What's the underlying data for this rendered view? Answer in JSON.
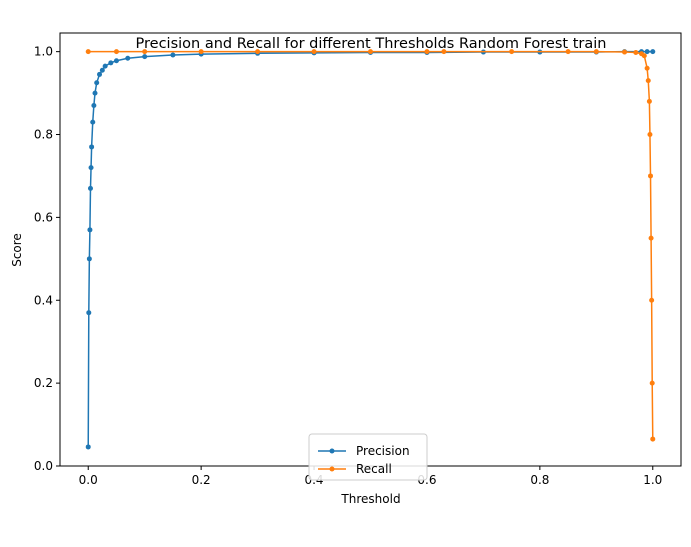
{
  "chart_data": {
    "type": "line",
    "title": "Precision and Recall for different Thresholds Random Forest train",
    "xlabel": "Threshold",
    "ylabel": "Score",
    "xlim": [
      -0.05,
      1.05
    ],
    "ylim": [
      0.0,
      1.045
    ],
    "xticks": [
      0.0,
      0.2,
      0.4,
      0.6,
      0.8,
      1.0
    ],
    "xtick_labels": [
      "0.0",
      "0.2",
      "0.4",
      "0.6",
      "0.8",
      "1.0"
    ],
    "yticks": [
      0.0,
      0.2,
      0.4,
      0.6,
      0.8,
      1.0
    ],
    "ytick_labels": [
      "0.0",
      "0.2",
      "0.4",
      "0.6",
      "0.8",
      "1.0"
    ],
    "grid": false,
    "legend_position": "lower-center",
    "series": [
      {
        "name": "Precision",
        "color": "#1f77b4",
        "marker": "circle",
        "x": [
          0.0,
          0.001,
          0.002,
          0.003,
          0.004,
          0.005,
          0.006,
          0.008,
          0.01,
          0.012,
          0.015,
          0.02,
          0.025,
          0.03,
          0.04,
          0.05,
          0.07,
          0.1,
          0.15,
          0.2,
          0.3,
          0.4,
          0.5,
          0.6,
          0.7,
          0.8,
          0.9,
          0.95,
          0.98,
          0.99,
          1.0
        ],
        "y": [
          0.046,
          0.37,
          0.5,
          0.57,
          0.67,
          0.72,
          0.77,
          0.83,
          0.87,
          0.9,
          0.925,
          0.945,
          0.955,
          0.965,
          0.973,
          0.978,
          0.984,
          0.988,
          0.992,
          0.994,
          0.996,
          0.997,
          0.998,
          0.998,
          0.999,
          0.999,
          0.999,
          1.0,
          1.0,
          1.0,
          1.0
        ]
      },
      {
        "name": "Recall",
        "color": "#ff7f0e",
        "marker": "circle",
        "x": [
          0.0,
          0.05,
          0.1,
          0.2,
          0.3,
          0.4,
          0.5,
          0.6,
          0.63,
          0.75,
          0.85,
          0.9,
          0.95,
          0.97,
          0.98,
          0.985,
          0.99,
          0.992,
          0.994,
          0.995,
          0.996,
          0.997,
          0.998,
          0.999,
          1.0
        ],
        "y": [
          1.0,
          1.0,
          1.0,
          1.0,
          1.0,
          1.0,
          1.0,
          1.0,
          1.0,
          1.0,
          1.0,
          1.0,
          0.999,
          0.998,
          0.995,
          0.99,
          0.96,
          0.93,
          0.88,
          0.8,
          0.7,
          0.55,
          0.4,
          0.2,
          0.065
        ]
      }
    ]
  }
}
